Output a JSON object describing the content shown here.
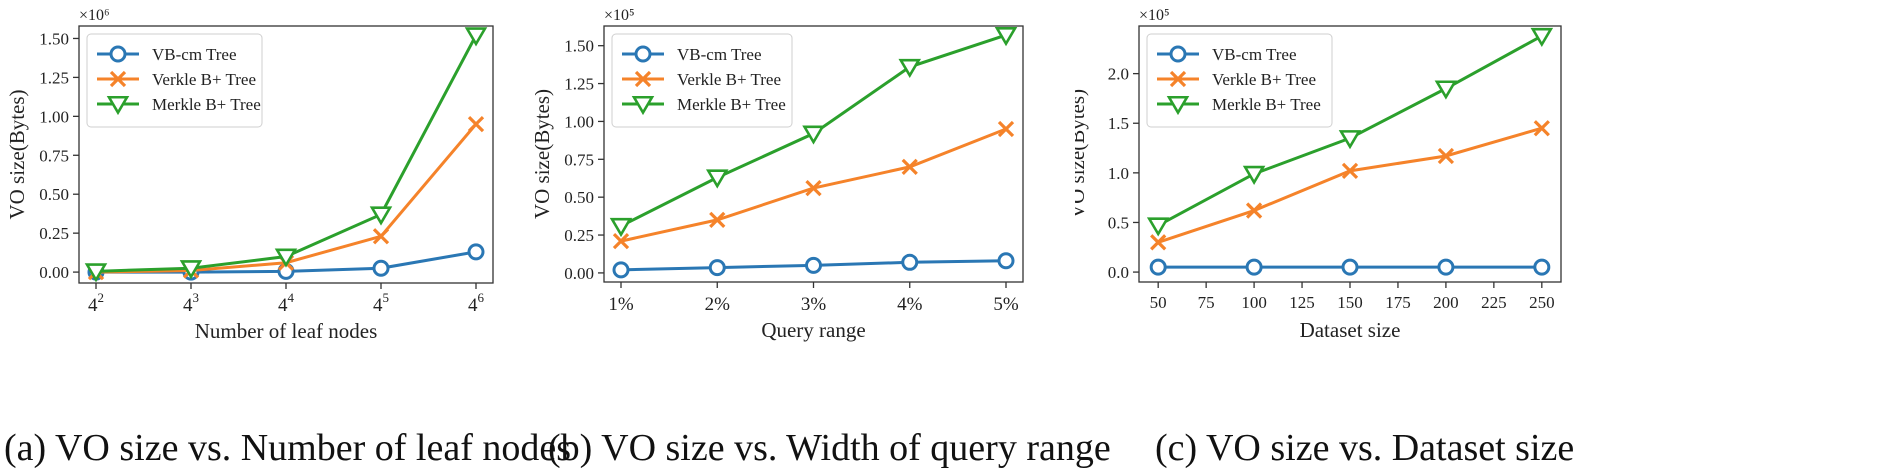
{
  "chart_data": [
    {
      "type": "line",
      "id": "a",
      "title": "",
      "caption": "(a) VO size vs. Number of leaf nodes",
      "xlabel": "Number of leaf nodes",
      "ylabel": "VO size(Bytes)",
      "multiplier": "×10⁶",
      "categories": [
        {
          "base": "4",
          "exp": "2"
        },
        {
          "base": "4",
          "exp": "3"
        },
        {
          "base": "4",
          "exp": "4"
        },
        {
          "base": "4",
          "exp": "5"
        },
        {
          "base": "4",
          "exp": "6"
        }
      ],
      "yticks": [
        0.0,
        0.25,
        0.5,
        0.75,
        1.0,
        1.25,
        1.5
      ],
      "ytick_labels": [
        "0.00",
        "0.25",
        "0.50",
        "0.75",
        "1.00",
        "1.25",
        "1.50"
      ],
      "ylim": [
        -0.07,
        1.58
      ],
      "legend_position": "top-left",
      "series": [
        {
          "name": "VB-cm Tree",
          "marker": "circle",
          "values": [
            0.0,
            0.0,
            0.005,
            0.025,
            0.13
          ]
        },
        {
          "name": "Verkle B+ Tree",
          "marker": "x",
          "values": [
            0.0,
            0.01,
            0.06,
            0.23,
            0.95
          ]
        },
        {
          "name": "Merkle B+ Tree",
          "marker": "triangle-down",
          "values": [
            0.005,
            0.025,
            0.1,
            0.37,
            1.52
          ]
        }
      ]
    },
    {
      "type": "line",
      "id": "b",
      "title": "",
      "caption": "(b) VO size vs. Width of query range",
      "xlabel": "Query range",
      "ylabel": "VO size(Bytes)",
      "multiplier": "×10⁵",
      "categories": [
        "1%",
        "2%",
        "3%",
        "4%",
        "5%"
      ],
      "yticks": [
        0.0,
        0.25,
        0.5,
        0.75,
        1.0,
        1.25,
        1.5
      ],
      "ytick_labels": [
        "0.00",
        "0.25",
        "0.50",
        "0.75",
        "1.00",
        "1.25",
        "1.50"
      ],
      "ylim": [
        -0.06,
        1.63
      ],
      "legend_position": "top-left",
      "series": [
        {
          "name": "VB-cm Tree",
          "marker": "circle",
          "values": [
            0.02,
            0.035,
            0.05,
            0.07,
            0.08
          ]
        },
        {
          "name": "Verkle B+ Tree",
          "marker": "x",
          "values": [
            0.21,
            0.35,
            0.56,
            0.7,
            0.95
          ]
        },
        {
          "name": "Merkle B+ Tree",
          "marker": "triangle-down",
          "values": [
            0.31,
            0.63,
            0.92,
            1.36,
            1.57
          ]
        }
      ]
    },
    {
      "type": "line",
      "id": "c",
      "title": "",
      "caption": "(c) VO size vs. Dataset size",
      "xlabel": "Dataset size",
      "ylabel": "VO size(Bytes)",
      "multiplier": "×10⁵",
      "x": [
        50,
        100,
        150,
        200,
        250
      ],
      "xticks": [
        50,
        75,
        100,
        125,
        150,
        175,
        200,
        225,
        250
      ],
      "xtick_labels": [
        "50",
        "75",
        "100",
        "125",
        "150",
        "175",
        "200",
        "225",
        "250"
      ],
      "xlim": [
        40,
        260
      ],
      "yticks": [
        0.0,
        0.5,
        1.0,
        1.5,
        2.0
      ],
      "ytick_labels": [
        "0.0",
        "0.5",
        "1.0",
        "1.5",
        "2.0"
      ],
      "ylim": [
        -0.1,
        2.48
      ],
      "legend_position": "top-left",
      "series": [
        {
          "name": "VB-cm Tree",
          "marker": "circle",
          "values": [
            0.05,
            0.05,
            0.05,
            0.05,
            0.05
          ]
        },
        {
          "name": "Verkle B+ Tree",
          "marker": "x",
          "values": [
            0.3,
            0.62,
            1.02,
            1.17,
            1.45
          ]
        },
        {
          "name": "Merkle B+ Tree",
          "marker": "triangle-down",
          "values": [
            0.47,
            0.99,
            1.35,
            1.85,
            2.38
          ]
        }
      ]
    }
  ],
  "colors": {
    "VB-cm Tree": "#2a77b4",
    "Verkle B+ Tree": "#f5832a",
    "Merkle B+ Tree": "#2ba02c",
    "axis": "#333333",
    "legend_border": "#cfcfcf"
  }
}
